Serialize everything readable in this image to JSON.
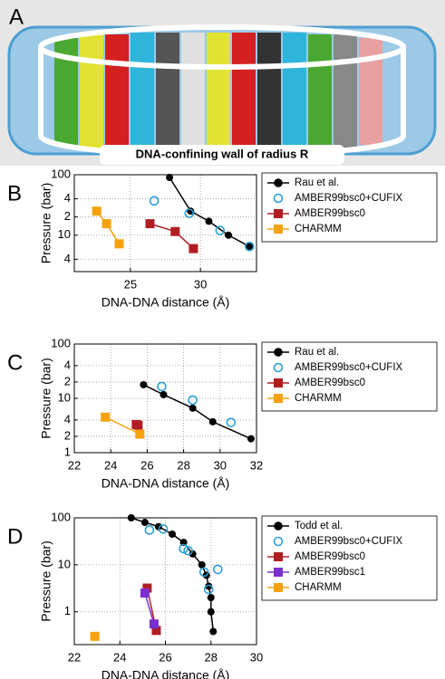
{
  "panel_a": {
    "label": "A",
    "caption": "DNA-confining wall of radius R"
  },
  "chart_data": [
    {
      "type": "line",
      "label": "B",
      "x_label": "DNA-DNA distance (Å)",
      "y_label": "Pressure (bar)",
      "xlim": [
        21,
        34
      ],
      "xticks": [
        25,
        30
      ],
      "ylim": [
        2.5,
        100
      ],
      "ylog": true,
      "grid": true,
      "yticks": [
        4,
        10,
        {
          "value": 20,
          "label": "2"
        },
        {
          "value": 40,
          "label": "4"
        },
        100
      ],
      "series": [
        {
          "name": "Rau et al.",
          "color": "#000000",
          "marker": "circle",
          "line": true,
          "x": [
            27.8,
            29.3,
            30.6,
            32.0,
            33.5
          ],
          "values": [
            90,
            25,
            17,
            10,
            6.5
          ]
        },
        {
          "name": "AMBER99bsc0+CUFIX",
          "color": "#2a9fd6",
          "marker": "open-circle",
          "line": false,
          "x": [
            26.7,
            29.2,
            31.4,
            33.5
          ],
          "values": [
            37,
            23,
            12,
            6.5
          ]
        },
        {
          "name": "AMBER99bsc0",
          "color": "#b01e23",
          "marker": "square",
          "line": true,
          "x": [
            26.4,
            28.2,
            29.5
          ],
          "values": [
            15.5,
            11.5,
            6
          ]
        },
        {
          "name": "CHARMM",
          "color": "#f5a20c",
          "marker": "square",
          "line": true,
          "x": [
            22.6,
            23.3,
            24.2
          ],
          "values": [
            25,
            15.5,
            7.2
          ]
        }
      ]
    },
    {
      "type": "line",
      "label": "C",
      "x_label": "DNA-DNA distance (Å)",
      "y_label": "Pressure (bar)",
      "xlim": [
        22,
        32
      ],
      "xticks": [
        22,
        24,
        26,
        28,
        30,
        32
      ],
      "ylim": [
        1,
        100
      ],
      "ylog": true,
      "grid": true,
      "yticks": [
        1,
        2,
        4,
        10,
        {
          "value": 20,
          "label": "2"
        },
        {
          "value": 40,
          "label": "4"
        },
        100
      ],
      "series": [
        {
          "name": "Rau et al.",
          "color": "#000000",
          "marker": "circle",
          "line": true,
          "x": [
            25.8,
            26.9,
            28.5,
            29.6,
            31.7
          ],
          "values": [
            17.8,
            11.7,
            6.6,
            3.7,
            1.8
          ]
        },
        {
          "name": "AMBER99bsc0+CUFIX",
          "color": "#2a9fd6",
          "marker": "open-circle",
          "line": false,
          "x": [
            26.8,
            28.5,
            30.6
          ],
          "values": [
            16.5,
            9.3,
            3.6
          ]
        },
        {
          "name": "AMBER99bsc0",
          "color": "#b01e23",
          "marker": "square",
          "line": true,
          "x": [
            25.4,
            25.5
          ],
          "values": [
            3.3,
            3.2
          ]
        },
        {
          "name": "CHARMM",
          "color": "#f5a20c",
          "marker": "square",
          "line": true,
          "x": [
            23.7,
            25.6
          ],
          "values": [
            4.5,
            2.2
          ]
        }
      ]
    },
    {
      "type": "line",
      "label": "D",
      "x_label": "DNA-DNA distance (Å)",
      "y_label": "Pressure (bar)",
      "xlim": [
        22,
        30
      ],
      "xticks": [
        22,
        24,
        26,
        28,
        30
      ],
      "ylim": [
        0.2,
        100
      ],
      "ylog": true,
      "grid": true,
      "yticks": [
        1,
        10,
        100
      ],
      "series": [
        {
          "name": "Todd et al.",
          "color": "#000000",
          "marker": "circle",
          "line": true,
          "x": [
            24.5,
            25.1,
            25.7,
            26.3,
            26.8,
            27.2,
            27.6,
            27.8,
            27.9,
            28.0,
            28.0,
            28.1
          ],
          "values": [
            100,
            80,
            65,
            45,
            30,
            17,
            10,
            6,
            3.5,
            2,
            1,
            0.38
          ]
        },
        {
          "name": "AMBER99bsc0+CUFIX",
          "color": "#2a9fd6",
          "marker": "open-circle",
          "line": false,
          "x": [
            25.3,
            25.9,
            26.8,
            27.0,
            27.7,
            27.9,
            28.3
          ],
          "values": [
            55,
            58,
            22,
            20,
            7,
            3,
            8
          ]
        },
        {
          "name": "AMBER99bsc0",
          "color": "#b01e23",
          "marker": "square",
          "line": true,
          "x": [
            25.2,
            25.6
          ],
          "values": [
            3.2,
            0.4
          ]
        },
        {
          "name": "AMBER99bsc1",
          "color": "#7a2fd0",
          "marker": "square",
          "line": true,
          "x": [
            25.1,
            25.5
          ],
          "values": [
            2.5,
            0.55
          ]
        },
        {
          "name": "CHARMM",
          "color": "#f5a20c",
          "marker": "square",
          "line": true,
          "x": [
            22.9
          ],
          "values": [
            0.3
          ]
        }
      ]
    }
  ]
}
